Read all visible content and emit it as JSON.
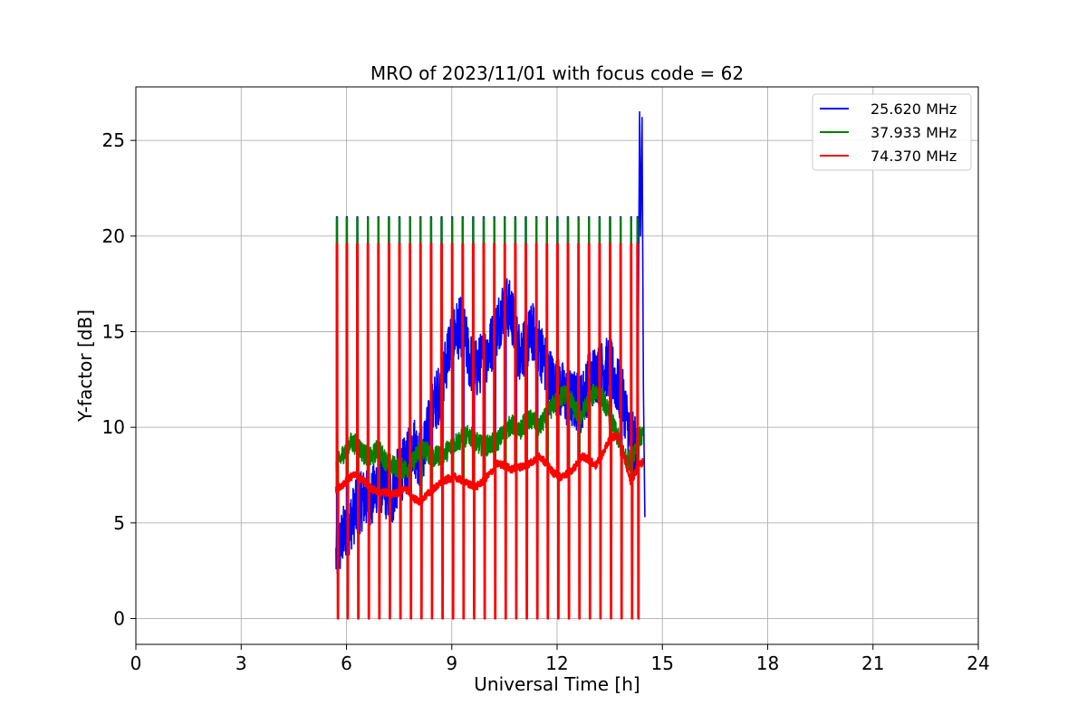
{
  "chart_data": {
    "type": "line",
    "title": "MRO of 2023/11/01 with focus code = 62",
    "xlabel": "Universal Time [h]",
    "ylabel": "Y-factor [dB]",
    "xlim": [
      0,
      24
    ],
    "ylim": [
      -1.35,
      27.8
    ],
    "xticks": [
      0,
      3,
      6,
      9,
      12,
      15,
      18,
      21,
      24
    ],
    "yticks": [
      0,
      5,
      10,
      15,
      20,
      25
    ],
    "grid": true,
    "legend_position": "top-right",
    "calibration_pulse_times": [
      5.72,
      6.0,
      6.3,
      6.6,
      6.9,
      7.2,
      7.5,
      7.8,
      8.1,
      8.4,
      8.7,
      9.0,
      9.3,
      9.6,
      9.9,
      10.2,
      10.5,
      10.8,
      11.1,
      11.4,
      11.7,
      12.0,
      12.3,
      12.6,
      12.9,
      13.2,
      13.5,
      13.8,
      14.1,
      14.28
    ],
    "series": [
      {
        "name": "25.620 MHz",
        "color": "#0000ff",
        "pulse_high": 21.0,
        "pulse_low": 0.05,
        "spike": {
          "x": [
            14.35,
            14.38,
            14.42,
            14.46,
            14.5
          ],
          "y": [
            26.5,
            20.0,
            26.2,
            12.0,
            5.3
          ]
        },
        "x": [
          5.7,
          5.9,
          6.1,
          6.3,
          6.5,
          6.7,
          6.9,
          7.1,
          7.3,
          7.5,
          7.7,
          7.9,
          8.1,
          8.3,
          8.5,
          8.7,
          8.9,
          9.1,
          9.3,
          9.5,
          9.7,
          9.9,
          10.1,
          10.3,
          10.5,
          10.7,
          10.9,
          11.1,
          11.3,
          11.5,
          11.7,
          11.9,
          12.1,
          12.3,
          12.5,
          12.7,
          12.9,
          13.1,
          13.3,
          13.5,
          13.7,
          13.9,
          14.1,
          14.3
        ],
        "y": [
          3.2,
          4.3,
          5.0,
          5.8,
          6.3,
          6.1,
          7.3,
          6.8,
          6.4,
          7.6,
          8.0,
          9.2,
          8.3,
          9.6,
          11.2,
          12.0,
          14.1,
          15.0,
          15.3,
          13.5,
          13.0,
          13.6,
          14.2,
          15.3,
          16.5,
          16.0,
          14.0,
          14.3,
          15.0,
          14.2,
          13.1,
          12.2,
          12.0,
          11.5,
          11.4,
          11.3,
          12.4,
          12.8,
          13.0,
          13.2,
          12.2,
          11.3,
          9.3,
          9.0
        ],
        "noise": 1.6
      },
      {
        "name": "37.933 MHz",
        "color": "#008000",
        "pulse_high": 20.95,
        "pulse_low": 0.1,
        "x": [
          5.7,
          5.9,
          6.1,
          6.3,
          6.5,
          6.7,
          6.9,
          7.1,
          7.3,
          7.5,
          7.7,
          7.9,
          8.1,
          8.3,
          8.5,
          8.7,
          8.9,
          9.1,
          9.3,
          9.5,
          9.7,
          9.9,
          10.1,
          10.3,
          10.5,
          10.7,
          10.9,
          11.1,
          11.3,
          11.5,
          11.7,
          11.9,
          12.1,
          12.3,
          12.5,
          12.7,
          12.9,
          13.1,
          13.3,
          13.5,
          13.7,
          13.9,
          14.1,
          14.3,
          14.45
        ],
        "y": [
          7.9,
          8.6,
          9.2,
          9.1,
          8.6,
          8.4,
          8.9,
          8.3,
          8.0,
          7.9,
          7.8,
          8.2,
          8.9,
          8.7,
          8.4,
          8.6,
          8.8,
          9.2,
          9.4,
          9.6,
          9.2,
          9.0,
          9.1,
          9.3,
          9.7,
          10.2,
          9.7,
          10.3,
          10.4,
          10.0,
          10.6,
          11.2,
          11.6,
          11.8,
          10.9,
          10.6,
          11.4,
          11.9,
          11.5,
          10.6,
          9.6,
          8.5,
          8.2,
          9.4,
          9.6
        ],
        "noise": 0.55
      },
      {
        "name": "74.370 MHz",
        "color": "#ff0000",
        "pulse_high": 19.6,
        "pulse_low": 0.0,
        "x": [
          5.7,
          5.9,
          6.1,
          6.3,
          6.5,
          6.7,
          6.9,
          7.1,
          7.3,
          7.5,
          7.7,
          7.9,
          8.1,
          8.3,
          8.5,
          8.7,
          8.9,
          9.1,
          9.3,
          9.5,
          9.7,
          9.9,
          10.1,
          10.3,
          10.5,
          10.7,
          10.9,
          11.1,
          11.3,
          11.5,
          11.7,
          11.9,
          12.1,
          12.3,
          12.5,
          12.7,
          12.9,
          13.1,
          13.3,
          13.5,
          13.7,
          13.9,
          14.1,
          14.3,
          14.45
        ],
        "y": [
          6.7,
          7.0,
          7.4,
          7.5,
          7.2,
          6.8,
          6.6,
          6.6,
          6.5,
          6.6,
          6.8,
          6.3,
          6.1,
          6.5,
          6.8,
          7.1,
          7.3,
          7.4,
          7.2,
          7.0,
          6.9,
          7.2,
          7.6,
          8.1,
          8.0,
          7.8,
          7.9,
          8.0,
          8.2,
          8.5,
          8.1,
          7.6,
          7.4,
          7.6,
          7.9,
          8.5,
          8.3,
          8.0,
          8.6,
          9.4,
          9.6,
          8.6,
          7.1,
          8.0,
          8.2
        ],
        "noise": 0.2
      }
    ]
  }
}
